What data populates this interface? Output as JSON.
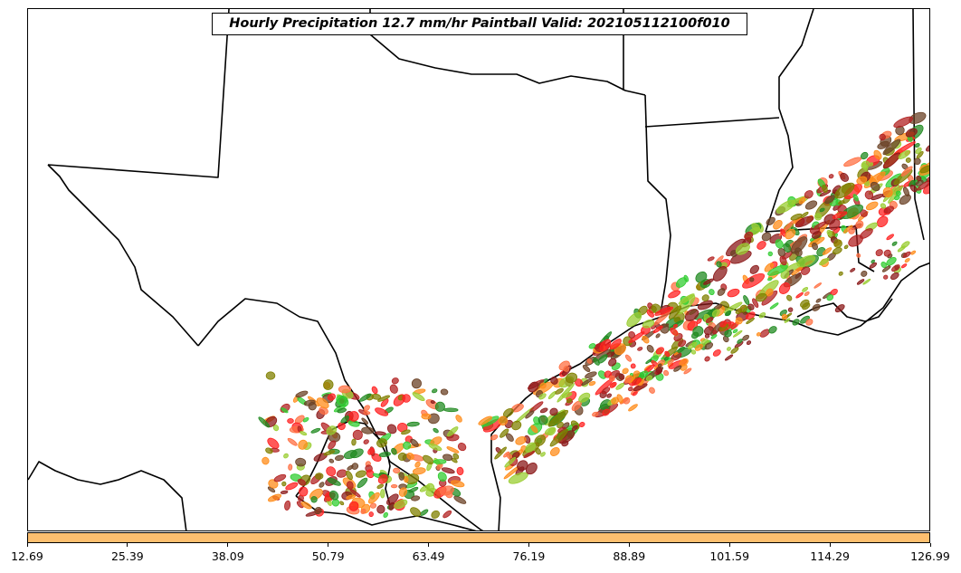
{
  "map": {
    "title": "Hourly Precipitation 12.7 mm/hr Paintball Valid: 202105112100f010",
    "colorbar": {
      "color": "#fdbf6f",
      "ticks": [
        "12.69",
        "25.39",
        "38.09",
        "50.79",
        "63.49",
        "76.19",
        "88.89",
        "101.59",
        "114.29",
        "126.99"
      ]
    },
    "member_colors": [
      "#b22222",
      "#8b1a1a",
      "#ff2020",
      "#ff8c1a",
      "#ff7043",
      "#808000",
      "#9acd32",
      "#228b22",
      "#32cd32",
      "#6b4226"
    ]
  }
}
